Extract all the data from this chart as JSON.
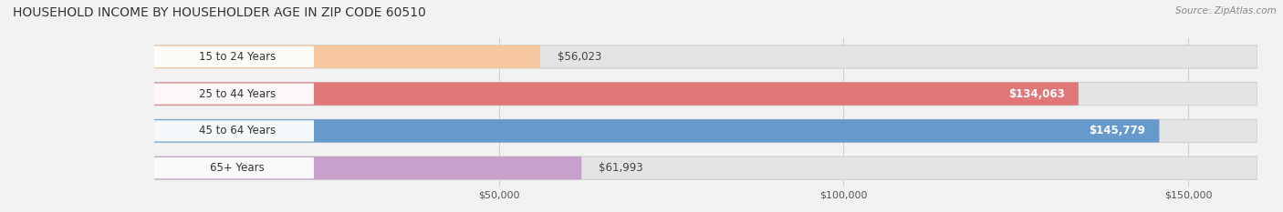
{
  "title": "HOUSEHOLD INCOME BY HOUSEHOLDER AGE IN ZIP CODE 60510",
  "source": "Source: ZipAtlas.com",
  "categories": [
    "15 to 24 Years",
    "25 to 44 Years",
    "45 to 64 Years",
    "65+ Years"
  ],
  "values": [
    56023,
    134063,
    145779,
    61993
  ],
  "bar_colors": [
    "#f5c8a0",
    "#e07878",
    "#6699cc",
    "#c8a0cc"
  ],
  "label_colors": [
    "#555555",
    "#ffffff",
    "#ffffff",
    "#555555"
  ],
  "value_inside_colors": [
    "#333333",
    "#ffffff",
    "#ffffff",
    "#333333"
  ],
  "value_inside": [
    false,
    true,
    true,
    false
  ],
  "x_ticks": [
    50000,
    100000,
    150000
  ],
  "x_tick_labels": [
    "$50,000",
    "$100,000",
    "$150,000"
  ],
  "xlim_max": 160000,
  "background_color": "#f2f2f2",
  "bar_bg_color": "#e4e4e4",
  "title_fontsize": 10,
  "source_fontsize": 7.5,
  "label_fontsize": 8.5,
  "value_fontsize": 8.5,
  "tick_fontsize": 8
}
